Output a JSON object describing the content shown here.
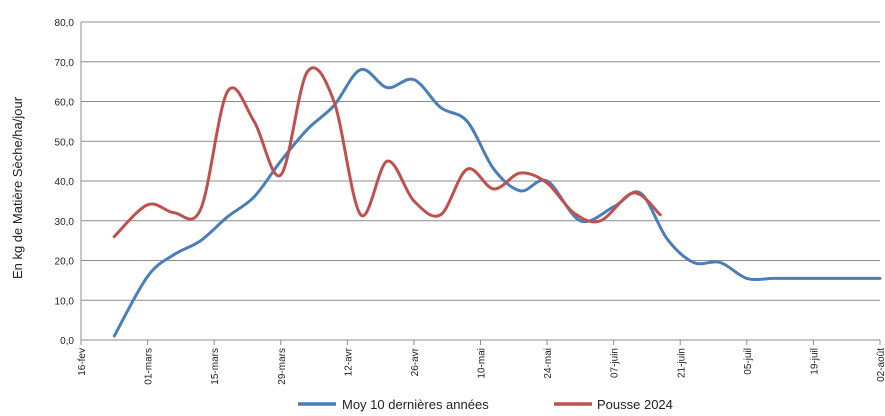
{
  "chart_data": {
    "type": "line",
    "ylabel": "En kg de Matière Sèche/ha/jour",
    "xlabel": "",
    "ylim": [
      0,
      80
    ],
    "y_ticks": [
      "0,0",
      "10,0",
      "20,0",
      "30,0",
      "40,0",
      "50,0",
      "60,0",
      "70,0",
      "80,0"
    ],
    "x_ticks": [
      "16-fev",
      "01-mars",
      "15-mars",
      "29-mars",
      "12-avr",
      "26-avr",
      "10-mai",
      "24-mai",
      "07-juin",
      "21-juin",
      "05-juil",
      "19-juil",
      "02-août"
    ],
    "grid": "horizontal",
    "legend_position": "bottom",
    "series": [
      {
        "name": "Moy 10 dernières années",
        "color": "#4a7ebb",
        "x": [
          0.5,
          1.0,
          1.4,
          1.8,
          2.2,
          2.6,
          3.0,
          3.4,
          3.8,
          4.2,
          4.6,
          5.0,
          5.4,
          5.8,
          6.2,
          6.6,
          7.0,
          7.5,
          8.0,
          8.4,
          8.8,
          9.2,
          9.6,
          10.0,
          10.4,
          10.8,
          11.2,
          11.6,
          12.0
        ],
        "values": [
          1.0,
          16.0,
          21.5,
          25.0,
          31.0,
          36.0,
          45.0,
          53.0,
          59.0,
          68.0,
          63.5,
          65.5,
          58.5,
          55.0,
          43.0,
          37.5,
          40.0,
          30.0,
          33.5,
          37.0,
          25.5,
          19.5,
          19.5,
          15.5,
          15.5,
          15.5,
          15.5,
          15.5,
          15.5
        ]
      },
      {
        "name": "Pousse 2024",
        "color": "#c0504d",
        "x": [
          0.5,
          1.0,
          1.4,
          1.8,
          2.2,
          2.6,
          3.0,
          3.4,
          3.8,
          4.2,
          4.6,
          5.0,
          5.4,
          5.8,
          6.2,
          6.6,
          7.0,
          7.4,
          7.8,
          8.3,
          8.7
        ],
        "values": [
          26.0,
          34.0,
          32.0,
          33.0,
          62.5,
          55.0,
          41.5,
          67.5,
          60.0,
          31.5,
          45.0,
          35.0,
          31.5,
          43.0,
          38.0,
          42.0,
          39.5,
          32.0,
          30.0,
          37.0,
          31.5
        ]
      }
    ]
  }
}
